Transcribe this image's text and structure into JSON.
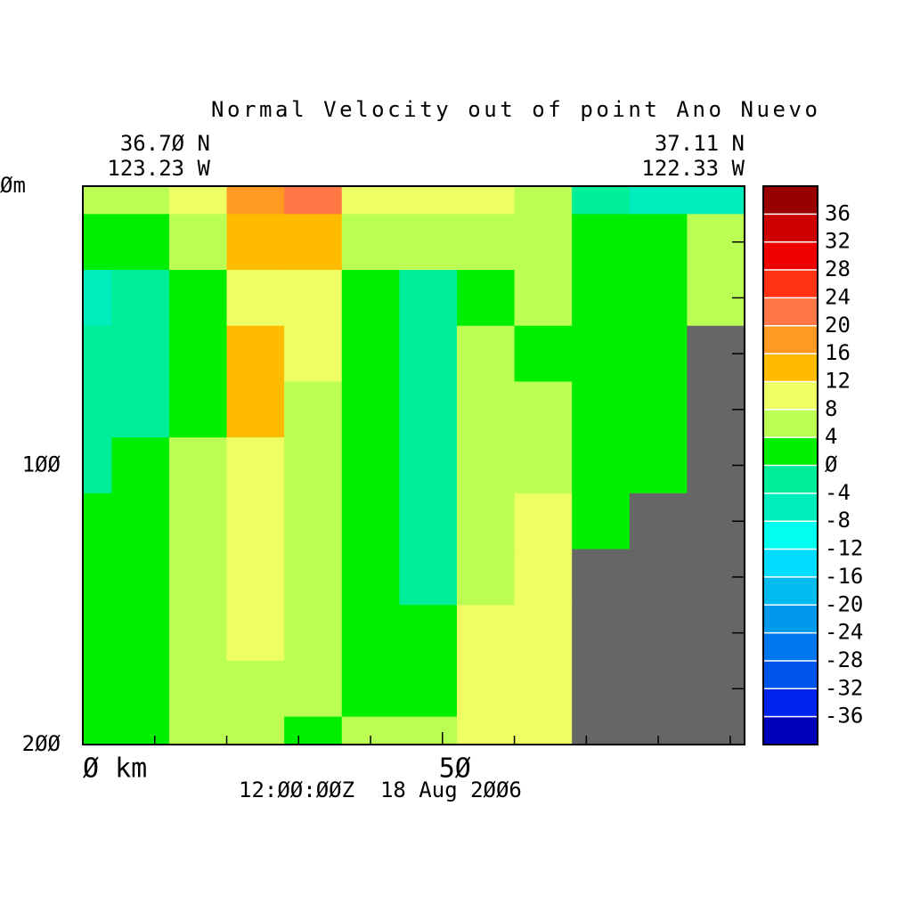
{
  "chart_data": {
    "type": "contour",
    "title": "Normal Velocity out of point Ano Nuevo",
    "corner_labels": {
      "left": [
        "36.7Ø N",
        "123.23 W"
      ],
      "right": [
        "37.11 N",
        "122.33 W"
      ]
    },
    "time_label": "12:ØØ:ØØZ  18 Aug 2ØØ6",
    "x": [
      0,
      8,
      16,
      24,
      32,
      40,
      48,
      56,
      64,
      72,
      80,
      88
    ],
    "y": [
      0,
      20,
      40,
      60,
      80,
      100,
      120,
      140,
      160,
      180,
      200
    ],
    "z": [
      [
        6,
        6,
        10,
        18,
        22,
        10,
        10,
        10,
        6,
        -2,
        -6,
        -6
      ],
      [
        2,
        2,
        6,
        14,
        14,
        6,
        6,
        6,
        6,
        2,
        2,
        6
      ],
      [
        -6,
        -2,
        2,
        10,
        10,
        2,
        -2,
        2,
        6,
        2,
        2,
        6
      ],
      [
        -3,
        -3,
        2,
        14,
        10,
        2,
        -2,
        6,
        2,
        2,
        2,
        null
      ],
      [
        -2,
        -2,
        2,
        14,
        6,
        2,
        -2,
        6,
        6,
        2,
        2,
        null
      ],
      [
        -2,
        2,
        6,
        10,
        6,
        2,
        -2,
        6,
        6,
        2,
        2,
        null
      ],
      [
        2,
        2,
        6,
        10,
        6,
        2,
        -2,
        6,
        10,
        2,
        null,
        null
      ],
      [
        2,
        2,
        6,
        10,
        6,
        2,
        -2,
        6,
        10,
        null,
        null,
        null
      ],
      [
        2,
        2,
        6,
        10,
        6,
        2,
        2,
        10,
        10,
        null,
        null,
        null
      ],
      [
        2,
        2,
        6,
        6,
        6,
        2,
        2,
        10,
        10,
        null,
        null,
        null
      ],
      [
        2,
        2,
        6,
        6,
        2,
        6,
        6,
        10,
        10,
        null,
        null,
        null
      ]
    ],
    "levels": [
      -40,
      -36,
      -32,
      -28,
      -24,
      -20,
      -16,
      -12,
      -8,
      -4,
      0,
      4,
      8,
      12,
      16,
      20,
      24,
      28,
      32,
      36,
      40
    ],
    "colors": [
      "#0000bb",
      "#0022ee",
      "#0055ee",
      "#0077ee",
      "#0099ee",
      "#00bbee",
      "#00ddff",
      "#00ffee",
      "#00eebb",
      "#00ee99",
      "#00ee00",
      "#bbff55",
      "#eeff66",
      "#ffbb00",
      "#ff9922",
      "#ff7744",
      "#ff3311",
      "#ee0000",
      "#cc0000",
      "#990000"
    ],
    "colorbar_ticks": [
      -36,
      -32,
      -28,
      -24,
      -20,
      -16,
      -12,
      -8,
      -4,
      {
        "value": 0,
        "label": "Ø"
      },
      4,
      8,
      12,
      16,
      20,
      24,
      28,
      32,
      36
    ],
    "land_color": "#666666",
    "xlim": [
      0,
      92
    ],
    "xticks": [
      {
        "value": 0,
        "label": "Ø km"
      },
      {
        "value": 50,
        "label": "5Ø"
      }
    ],
    "xminorticks": [
      10,
      20,
      30,
      40,
      60,
      70,
      80,
      90
    ],
    "ylim": [
      0,
      200
    ],
    "yticks": [
      {
        "value": 0,
        "label": "Øm"
      },
      {
        "value": 100,
        "label": "1ØØ"
      },
      {
        "value": 200,
        "label": "2ØØ"
      }
    ],
    "yminorticks": [
      20,
      40,
      60,
      80,
      120,
      140,
      160,
      180
    ]
  }
}
